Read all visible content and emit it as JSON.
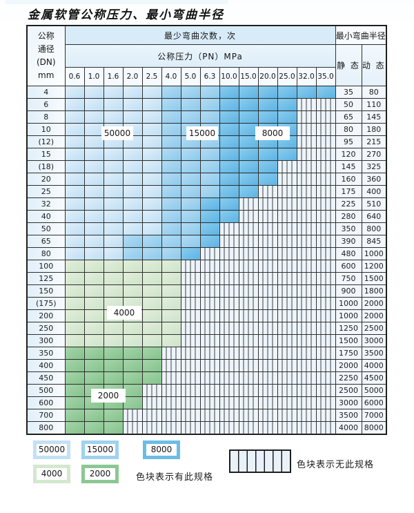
{
  "title": "金属软管公称压力、最小弯曲半径",
  "table": {
    "dn_header_lines": [
      "公称",
      "通径",
      "(DN)",
      "mm"
    ],
    "bend_cycles_header": "最少弯曲次数，次",
    "pressure_header": "公称压力（PN）MPa",
    "radius_header": "最小弯曲半径",
    "static_label": "静 态",
    "dynamic_label": "动 态",
    "pressures": [
      "0.6",
      "1.0",
      "1.6",
      "2.0",
      "2.5",
      "4.0",
      "5.0",
      "6.3",
      "10.0",
      "15.0",
      "20.0",
      "25.0",
      "32.0",
      "35.0"
    ],
    "zone_key": {
      "L": "50000",
      "M": "15000",
      "D": "8000",
      "g": "4000",
      "G": "2000",
      "s": "no-spec"
    },
    "rows": [
      {
        "dn": "4",
        "zones": "LLLLLMMMDDDDDD",
        "static": "35",
        "dynamic": "80"
      },
      {
        "dn": "6",
        "zones": "LLLLLMMMDDDDss",
        "static": "50",
        "dynamic": "110"
      },
      {
        "dn": "8",
        "zones": "LLLLLMMMDDDDss",
        "static": "65",
        "dynamic": "145"
      },
      {
        "dn": "10",
        "zones": "LLLLLMMMDDDDss",
        "static": "80",
        "dynamic": "180"
      },
      {
        "dn": "(12)",
        "zones": "LLLLLMMMDDDDss",
        "static": "95",
        "dynamic": "215"
      },
      {
        "dn": "15",
        "zones": "LLLLLMMMDDDDss",
        "static": "120",
        "dynamic": "270"
      },
      {
        "dn": "(18)",
        "zones": "LLLLLMMMDDDsss",
        "static": "145",
        "dynamic": "325"
      },
      {
        "dn": "20",
        "zones": "LLLLLMMMDDDsss",
        "static": "160",
        "dynamic": "360"
      },
      {
        "dn": "25",
        "zones": "LLLLLMMMDDssss",
        "static": "175",
        "dynamic": "400"
      },
      {
        "dn": "32",
        "zones": "LLLLLMMDDsssss",
        "static": "225",
        "dynamic": "510"
      },
      {
        "dn": "40",
        "zones": "LLLLLMMDDsssss",
        "static": "280",
        "dynamic": "640"
      },
      {
        "dn": "50",
        "zones": "LLLLLMMDssssss",
        "static": "350",
        "dynamic": "800"
      },
      {
        "dn": "65",
        "zones": "LLLMMMMDssssss",
        "static": "390",
        "dynamic": "845"
      },
      {
        "dn": "80",
        "zones": "LLLMMMDsssssss",
        "static": "480",
        "dynamic": "1000"
      },
      {
        "dn": "100",
        "zones": "ggggggssssssss",
        "static": "600",
        "dynamic": "1200"
      },
      {
        "dn": "125",
        "zones": "ggggggssssssss",
        "static": "750",
        "dynamic": "1500"
      },
      {
        "dn": "150",
        "zones": "ggggggssssssss",
        "static": "900",
        "dynamic": "1800"
      },
      {
        "dn": "(175)",
        "zones": "ggggggssssssss",
        "static": "1000",
        "dynamic": "2000"
      },
      {
        "dn": "200",
        "zones": "ggggggssssssss",
        "static": "1000",
        "dynamic": "2000"
      },
      {
        "dn": "250",
        "zones": "ggggggssssssss",
        "static": "1250",
        "dynamic": "2500"
      },
      {
        "dn": "300",
        "zones": "ggggggssssssss",
        "static": "1500",
        "dynamic": "3000"
      },
      {
        "dn": "350",
        "zones": "GGGGGsssssssss",
        "static": "1750",
        "dynamic": "3500"
      },
      {
        "dn": "400",
        "zones": "GGGGGsssssssss",
        "static": "2000",
        "dynamic": "4000"
      },
      {
        "dn": "450",
        "zones": "GGGGGsssssssss",
        "static": "2250",
        "dynamic": "4500"
      },
      {
        "dn": "500",
        "zones": "GGGGssssssssss",
        "static": "2500",
        "dynamic": "5000"
      },
      {
        "dn": "600",
        "zones": "GGGGssssssssss",
        "static": "3000",
        "dynamic": "6000"
      },
      {
        "dn": "700",
        "zones": "GGGsssssssssss",
        "static": "3500",
        "dynamic": "7000"
      },
      {
        "dn": "800",
        "zones": "GGGsssssssssss",
        "static": "4000",
        "dynamic": "8000"
      }
    ]
  },
  "zone_labels": {
    "z50000": "50000",
    "z15000": "15000",
    "z8000": "8000",
    "z4000": "4000",
    "z2000": "2000"
  },
  "legend": {
    "swatches": [
      {
        "id": "sw-50000",
        "label": "50000"
      },
      {
        "id": "sw-15000",
        "label": "15000"
      },
      {
        "id": "sw-8000",
        "label": "8000"
      },
      {
        "id": "sw-4000",
        "label": "4000"
      },
      {
        "id": "sw-2000",
        "label": "2000"
      }
    ],
    "has_spec_text": "色块表示有此规格",
    "no_spec_text": "色块表示无此规格"
  },
  "colors": {
    "zone_50000": "#c3e1f5",
    "zone_15000": "#9ed2ef",
    "zone_8000": "#6cbce6",
    "zone_4000": "#d4e7cf",
    "zone_2000": "#8cc793",
    "no_spec_bg": "#edf4fb",
    "grid_line": "#2e2e2e"
  }
}
